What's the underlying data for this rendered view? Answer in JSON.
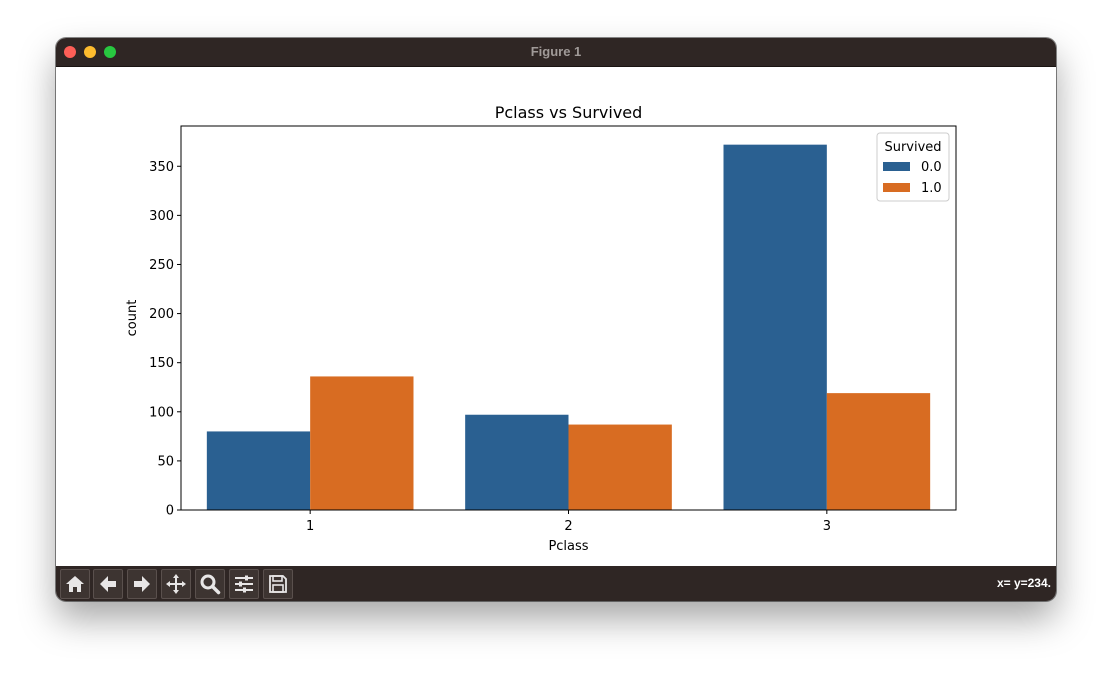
{
  "window": {
    "title": "Figure 1"
  },
  "toolbar": {
    "buttons": [
      {
        "icon": "home-icon"
      },
      {
        "icon": "back-icon"
      },
      {
        "icon": "forward-icon"
      },
      {
        "icon": "pan-icon"
      },
      {
        "icon": "zoom-icon"
      },
      {
        "icon": "configure-subplots-icon"
      },
      {
        "icon": "save-icon"
      }
    ],
    "coords": "x= y=234."
  },
  "colors": {
    "survived_0": "#2a6091",
    "survived_1": "#d86c22",
    "chrome": "#2f2624"
  },
  "chart_data": {
    "type": "bar",
    "title": "Pclass vs Survived",
    "xlabel": "Pclass",
    "ylabel": "count",
    "categories": [
      "1",
      "2",
      "3"
    ],
    "series": [
      {
        "name": "0.0",
        "values": [
          80,
          97,
          372
        ]
      },
      {
        "name": "1.0",
        "values": [
          136,
          87,
          119
        ]
      }
    ],
    "legend_title": "Survived",
    "legend_position": "top-right",
    "yticks": [
      0,
      50,
      100,
      150,
      200,
      250,
      300,
      350
    ],
    "ylim": [
      0,
      391
    ],
    "grid": false
  }
}
